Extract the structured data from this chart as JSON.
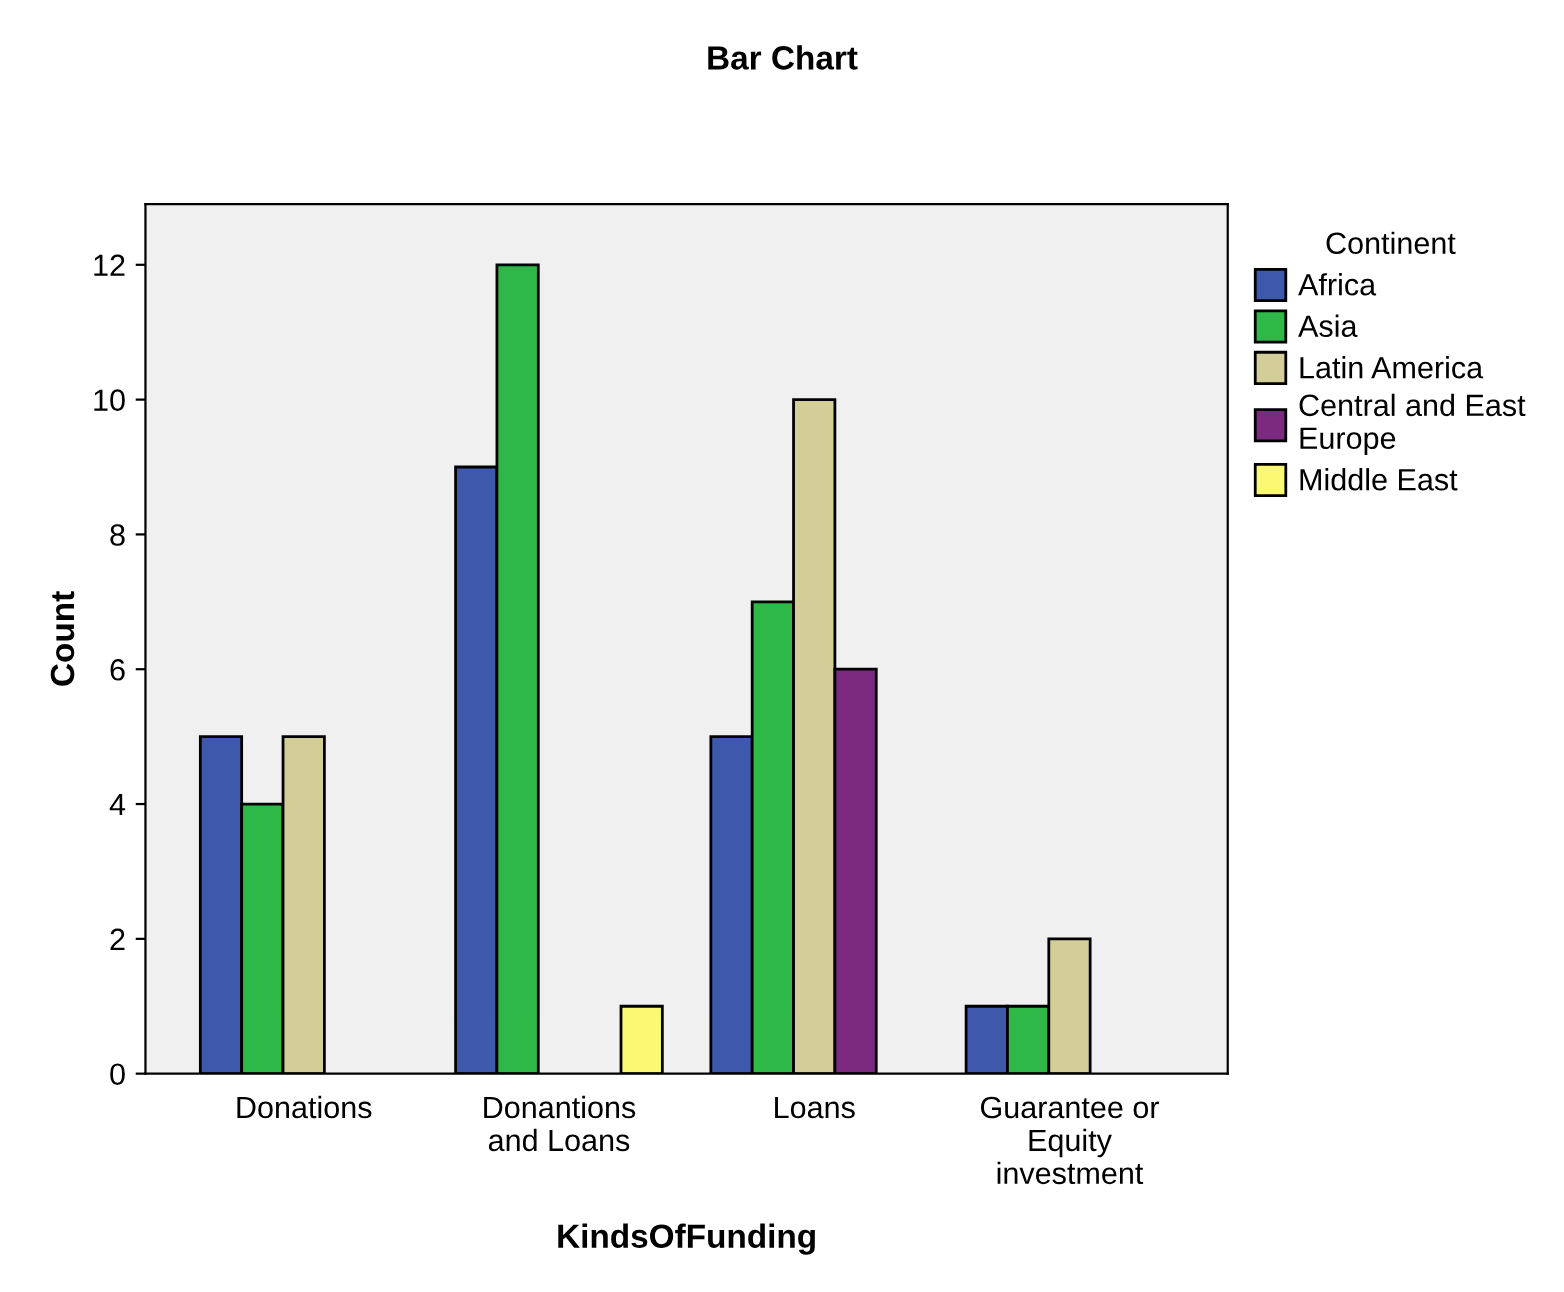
{
  "chart_data": {
    "type": "bar",
    "title": "Bar Chart",
    "xlabel": "KindsOfFunding",
    "ylabel": "Count",
    "legend_title": "Continent",
    "categories": [
      "Donations",
      "Donantions\nand Loans",
      "Loans",
      "Guarantee or\nEquity\ninvestment"
    ],
    "series": [
      {
        "name": "Africa",
        "color": "#3e58ac",
        "values": [
          5,
          9,
          5,
          1
        ]
      },
      {
        "name": "Asia",
        "color": "#2eb848",
        "values": [
          4,
          12,
          7,
          1
        ]
      },
      {
        "name": "Latin America",
        "color": "#d3ce97",
        "values": [
          5,
          null,
          10,
          2
        ]
      },
      {
        "name": "Central and East\nEurope",
        "color": "#7b2a7f",
        "values": [
          null,
          null,
          6,
          null
        ]
      },
      {
        "name": "Middle East",
        "color": "#fbf873",
        "values": [
          null,
          1,
          null,
          null
        ]
      }
    ],
    "ylim": [
      0,
      12.9
    ],
    "yticks": [
      0,
      2,
      4,
      6,
      8,
      10,
      12
    ],
    "grid": false,
    "legend": "top right"
  }
}
